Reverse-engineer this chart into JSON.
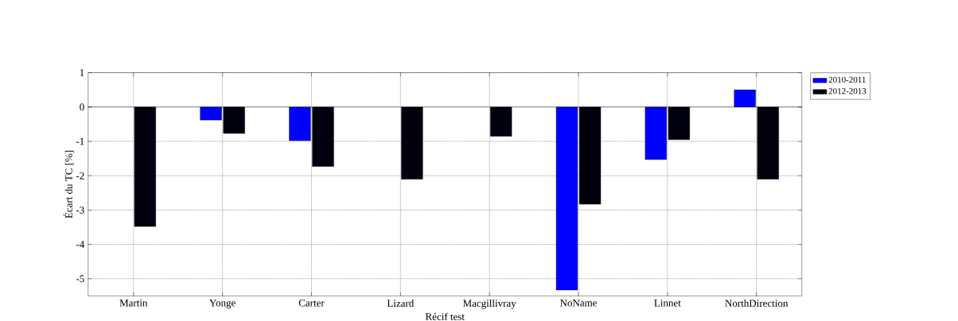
{
  "chart_data": {
    "type": "bar",
    "xlabel": "Récif test",
    "ylabel": "Écart du TC [%]",
    "categories": [
      "Martin",
      "Yonge",
      "Carter",
      "Lizard",
      "Macgillivray",
      "NoName",
      "Linnet",
      "NorthDirection"
    ],
    "series": [
      {
        "name": "2010-2011",
        "color": "#0000ff",
        "values": [
          null,
          -0.38,
          -0.98,
          null,
          null,
          -5.33,
          -1.53,
          0.5
        ]
      },
      {
        "name": "2012-2013",
        "color": "#00000f",
        "values": [
          -3.48,
          -0.77,
          -1.73,
          -2.1,
          -0.85,
          -2.83,
          -0.95,
          -2.1
        ]
      }
    ],
    "ylim": [
      -5.5,
      1
    ],
    "yticks": [
      -5,
      -4,
      -3,
      -2,
      -1,
      0,
      1
    ],
    "grid": true,
    "legend": "top right"
  }
}
